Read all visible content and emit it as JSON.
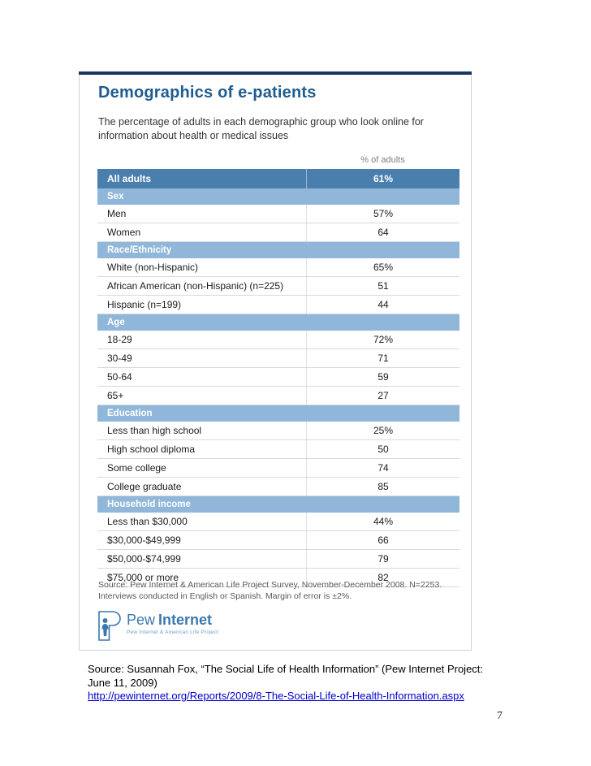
{
  "page": {
    "title": "Demographics of e-patients",
    "subtitle": "The percentage of adults in each demographic group who look online for information about health or medical issues",
    "page_number": "7"
  },
  "table": {
    "value_column_header": "% of adults",
    "rows": [
      {
        "type": "total",
        "label": "All adults",
        "value": "61%"
      },
      {
        "type": "section",
        "label": "Sex",
        "value": ""
      },
      {
        "type": "data",
        "label": "Men",
        "value": "57%"
      },
      {
        "type": "data",
        "label": "Women",
        "value": "64"
      },
      {
        "type": "section",
        "label": "Race/Ethnicity",
        "value": ""
      },
      {
        "type": "data",
        "label": "White (non-Hispanic)",
        "value": "65%"
      },
      {
        "type": "data",
        "label": "African American (non-Hispanic) (n=225)",
        "value": "51"
      },
      {
        "type": "data",
        "label": "Hispanic (n=199)",
        "value": "44"
      },
      {
        "type": "section",
        "label": "Age",
        "value": ""
      },
      {
        "type": "data",
        "label": "18-29",
        "value": "72%"
      },
      {
        "type": "data",
        "label": "30-49",
        "value": "71"
      },
      {
        "type": "data",
        "label": "50-64",
        "value": "59"
      },
      {
        "type": "data",
        "label": "65+",
        "value": "27"
      },
      {
        "type": "section",
        "label": "Education",
        "value": ""
      },
      {
        "type": "data",
        "label": "Less than high school",
        "value": "25%"
      },
      {
        "type": "data",
        "label": "High school diploma",
        "value": "50"
      },
      {
        "type": "data",
        "label": "Some college",
        "value": "74"
      },
      {
        "type": "data",
        "label": "College graduate",
        "value": "85"
      },
      {
        "type": "section",
        "label": "Household income",
        "value": ""
      },
      {
        "type": "data",
        "label": "Less than $30,000",
        "value": "44%"
      },
      {
        "type": "data",
        "label": "$30,000-$49,999",
        "value": "66"
      },
      {
        "type": "data",
        "label": "$50,000-$74,999",
        "value": "79"
      },
      {
        "type": "data",
        "label": "$75,000 or more",
        "value": "82"
      }
    ]
  },
  "source_note": "Source: Pew Internet & American Life Project Survey, November-December 2008. N=2253. Interviews conducted in English or Spanish.  Margin of error is ±2%.",
  "logo": {
    "brand_first": "Pew",
    "brand_second": "Internet",
    "tagline": "Pew Internet & American Life Project"
  },
  "citation": {
    "line1": "Source: Susannah Fox, “The Social Life of Health Information” (Pew Internet Project:",
    "line2": "June 11, 2009)",
    "link": "http://pewinternet.org/Reports/2009/8-The-Social-Life-of-Health-Information.aspx"
  },
  "colors": {
    "accent_bar": "#17365d",
    "title_blue": "#1f5c90",
    "total_row": "#4a7ead",
    "section_row": "#90b7d9",
    "logo_blue": "#3c78ad",
    "link_blue": "#0000cc"
  }
}
